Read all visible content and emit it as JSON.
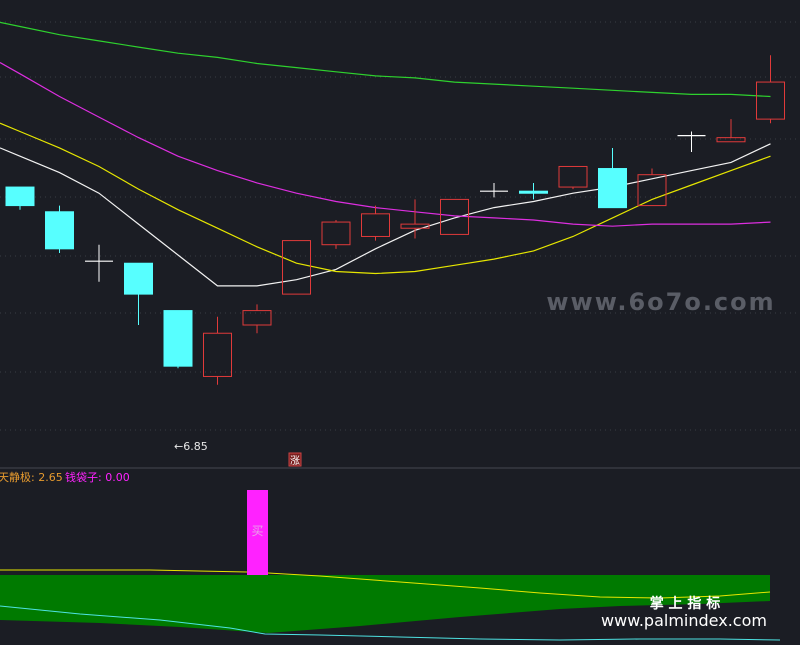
{
  "colors": {
    "background": "#1b1d24",
    "up": "#e03a3a",
    "down": "#57ffff",
    "ma_white": "#f2f2f2",
    "ma_yellow": "#e6e600",
    "ma_magenta": "#dd2ee0",
    "ma_green": "#2ed12e",
    "indicator_orange": "#e69a2e",
    "indicator_magenta": "#ff22ff",
    "indicator_fill": "#007a00",
    "indicator_cyan": "#4ee3e3",
    "watermark": "#5a5d66",
    "grid": "#3a3d45"
  },
  "chart_data": {
    "type": "candlestick",
    "price_range": [
      6.55,
      8.25
    ],
    "candles": [
      {
        "open": 7.73,
        "close": 7.64,
        "high": 7.73,
        "low": 7.62
      },
      {
        "open": 7.61,
        "close": 7.43,
        "high": 7.64,
        "low": 7.41
      },
      {
        "open": 7.37,
        "close": 7.37,
        "high": 7.45,
        "low": 7.27
      },
      {
        "open": 7.36,
        "close": 7.21,
        "high": 7.36,
        "low": 7.06
      },
      {
        "open": 7.13,
        "close": 6.86,
        "high": 7.13,
        "low": 6.85
      },
      {
        "open": 6.81,
        "close": 7.02,
        "high": 7.1,
        "low": 6.77
      },
      {
        "open": 7.06,
        "close": 7.13,
        "high": 7.16,
        "low": 7.02
      },
      {
        "open": 7.21,
        "close": 7.47,
        "high": 7.47,
        "low": 7.21
      },
      {
        "open": 7.45,
        "close": 7.56,
        "high": 7.57,
        "low": 7.43
      },
      {
        "open": 7.49,
        "close": 7.6,
        "high": 7.64,
        "low": 7.47
      },
      {
        "open": 7.53,
        "close": 7.55,
        "high": 7.67,
        "low": 7.48
      },
      {
        "open": 7.5,
        "close": 7.67,
        "high": 7.67,
        "low": 7.5
      },
      {
        "open": 7.71,
        "close": 7.71,
        "high": 7.75,
        "low": 7.68
      },
      {
        "open": 7.71,
        "close": 7.7,
        "high": 7.75,
        "low": 7.67
      },
      {
        "open": 7.73,
        "close": 7.83,
        "high": 7.83,
        "low": 7.72
      },
      {
        "open": 7.82,
        "close": 7.63,
        "high": 7.92,
        "low": 7.63
      },
      {
        "open": 7.64,
        "close": 7.79,
        "high": 7.82,
        "low": 7.64
      },
      {
        "open": 7.98,
        "close": 7.98,
        "high": 8.0,
        "low": 7.9
      },
      {
        "open": 7.95,
        "close": 7.97,
        "high": 8.06,
        "low": 7.95
      },
      {
        "open": 8.06,
        "close": 8.24,
        "high": 8.37,
        "low": 8.04
      }
    ],
    "ma_lines": [
      {
        "color_key": "ma_white",
        "values": [
          7.88,
          7.8,
          7.7,
          7.55,
          7.4,
          7.25,
          7.25,
          7.28,
          7.33,
          7.43,
          7.52,
          7.58,
          7.63,
          7.66,
          7.7,
          7.73,
          7.77,
          7.81,
          7.85,
          7.94
        ]
      },
      {
        "color_key": "ma_yellow",
        "values": [
          8.0,
          7.92,
          7.83,
          7.72,
          7.62,
          7.53,
          7.44,
          7.36,
          7.32,
          7.31,
          7.32,
          7.35,
          7.38,
          7.42,
          7.49,
          7.58,
          7.67,
          7.74,
          7.81,
          7.88
        ]
      },
      {
        "color_key": "ma_magenta",
        "values": [
          8.28,
          8.17,
          8.07,
          7.97,
          7.88,
          7.81,
          7.75,
          7.7,
          7.66,
          7.63,
          7.61,
          7.59,
          7.58,
          7.57,
          7.55,
          7.54,
          7.55,
          7.55,
          7.55,
          7.56
        ]
      },
      {
        "color_key": "ma_green",
        "values": [
          8.51,
          8.47,
          8.44,
          8.41,
          8.38,
          8.36,
          8.33,
          8.31,
          8.29,
          8.27,
          8.26,
          8.24,
          8.23,
          8.22,
          8.21,
          8.2,
          8.19,
          8.18,
          8.18,
          8.17
        ]
      }
    ],
    "low_marker": {
      "value": "6.85",
      "prefix": "←",
      "candle_index": 4
    },
    "tag_glyph": "涨",
    "indicator": {
      "legend": [
        {
          "label": "天静极: 2.65",
          "color_key": "indicator_orange"
        },
        {
          "label": "钱袋子: 0.00",
          "color_key": "indicator_magenta"
        }
      ],
      "signal_label": "买",
      "signal_candle_index": 6
    }
  },
  "watermarks": {
    "center": "www.6o7o.com",
    "brand_cn": "掌 上 指 标",
    "site": "www.palmindex.com"
  }
}
